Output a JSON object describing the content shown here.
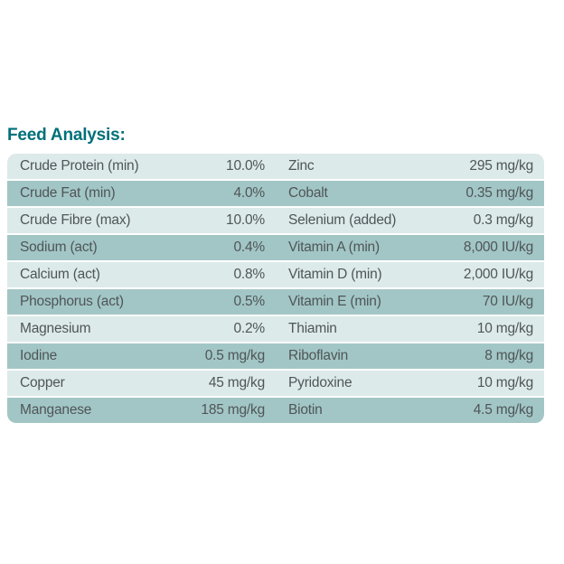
{
  "title": "Feed Analysis:",
  "colors": {
    "title_teal": "#00707a",
    "row_light": "#dceae9",
    "row_medium": "#a2c6c5",
    "row_text": "#4f5558",
    "background": "#ffffff"
  },
  "table": {
    "rows": [
      {
        "left_label": "Crude Protein (min)",
        "left_value": "10.0%",
        "right_label": "Zinc",
        "right_value": "295 mg/kg"
      },
      {
        "left_label": "Crude Fat (min)",
        "left_value": "4.0%",
        "right_label": "Cobalt",
        "right_value": "0.35 mg/kg"
      },
      {
        "left_label": "Crude Fibre (max)",
        "left_value": "10.0%",
        "right_label": "Selenium (added)",
        "right_value": "0.3 mg/kg"
      },
      {
        "left_label": "Sodium (act)",
        "left_value": "0.4%",
        "right_label": "Vitamin A (min)",
        "right_value": "8,000 IU/kg"
      },
      {
        "left_label": "Calcium (act)",
        "left_value": "0.8%",
        "right_label": "Vitamin D (min)",
        "right_value": "2,000 IU/kg"
      },
      {
        "left_label": "Phosphorus (act)",
        "left_value": "0.5%",
        "right_label": "Vitamin E (min)",
        "right_value": "70 IU/kg"
      },
      {
        "left_label": "Magnesium",
        "left_value": "0.2%",
        "right_label": "Thiamin",
        "right_value": "10 mg/kg"
      },
      {
        "left_label": "Iodine",
        "left_value": "0.5 mg/kg",
        "right_label": "Riboflavin",
        "right_value": "8 mg/kg"
      },
      {
        "left_label": "Copper",
        "left_value": "45 mg/kg",
        "right_label": "Pyridoxine",
        "right_value": "10 mg/kg"
      },
      {
        "left_label": "Manganese",
        "left_value": "185 mg/kg",
        "right_label": "Biotin",
        "right_value": "4.5 mg/kg"
      }
    ]
  }
}
